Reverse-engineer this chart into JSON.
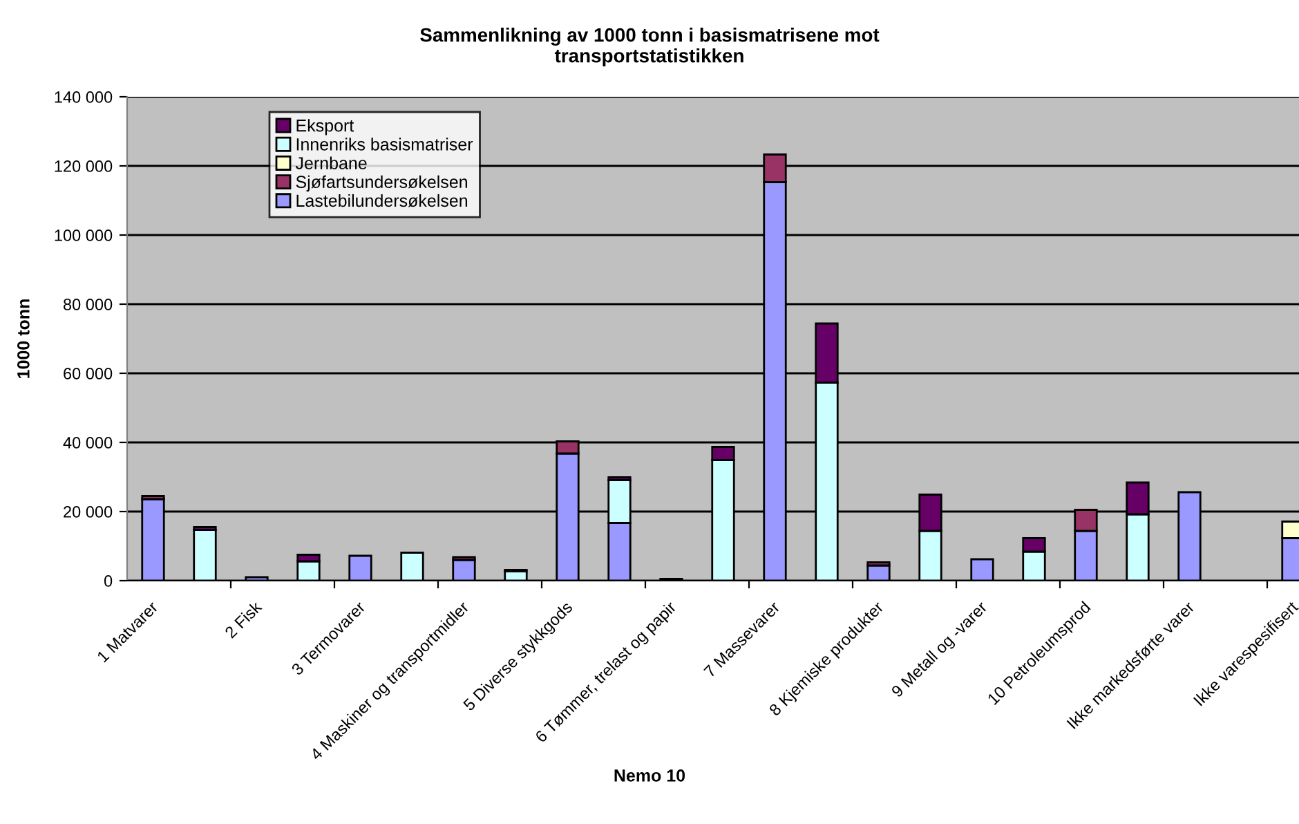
{
  "chart_data": {
    "type": "bar",
    "stacked": true,
    "title": "Sammenlikning av 1000 tonn i basismatrisene mot\ntransportstatistikken",
    "xlabel": "Nemo 10",
    "ylabel": "1000 tonn",
    "categories": [
      "1 Matvarer",
      null,
      "2 Fisk",
      null,
      "3 Termovarer",
      null,
      "4 Maskiner og transportmidler",
      null,
      "5 Diverse stykkgods",
      null,
      "6 Tømmer, trelast og papir",
      null,
      "7 Massevarer",
      null,
      "8 Kjemiske produkter",
      null,
      "9 Metall og -varer",
      null,
      "10 Petroleumsprod",
      null,
      "Ikke markedsførte varer",
      null,
      "Ikke varespesifisert"
    ],
    "series": [
      {
        "name": "Lastebilundersøkelsen",
        "color": "#9999ff",
        "values": [
          23600,
          null,
          1000,
          null,
          7200,
          null,
          6000,
          null,
          36800,
          16700,
          null,
          null,
          115300,
          null,
          4400,
          null,
          6200,
          null,
          14400,
          null,
          25600,
          null,
          12300
        ]
      },
      {
        "name": "Sjøfartsundersøkelsen",
        "color": "#993366",
        "values": [
          900,
          null,
          null,
          null,
          null,
          null,
          800,
          null,
          3500,
          null,
          null,
          null,
          8000,
          null,
          900,
          null,
          null,
          null,
          6100,
          null,
          null,
          null,
          null
        ]
      },
      {
        "name": "Jernbane",
        "color": "#ffffcc",
        "values": [
          null,
          null,
          null,
          null,
          null,
          null,
          null,
          null,
          null,
          null,
          null,
          null,
          null,
          null,
          null,
          null,
          null,
          null,
          null,
          null,
          null,
          null,
          4800
        ]
      },
      {
        "name": "Innenriks basismatriser",
        "color": "#ccffff",
        "values": [
          null,
          14700,
          null,
          5600,
          null,
          8100,
          null,
          2700,
          null,
          12400,
          null,
          34900,
          null,
          57300,
          null,
          14400,
          null,
          8400,
          null,
          19200,
          null,
          null,
          null
        ]
      },
      {
        "name": "Eksport",
        "color": "#660066",
        "values": [
          null,
          800,
          null,
          1900,
          null,
          null,
          null,
          400,
          null,
          800,
          500,
          3800,
          null,
          17100,
          null,
          10500,
          null,
          3900,
          null,
          9200,
          null,
          null,
          null
        ]
      }
    ],
    "ylim": [
      0,
      140000
    ],
    "yticks": [
      0,
      {
        "value": 20000,
        "label": "20 000"
      },
      {
        "value": 40000,
        "label": "40 000"
      },
      {
        "value": 60000,
        "label": "60 000"
      },
      {
        "value": 80000,
        "label": "80 000"
      },
      {
        "value": 100000,
        "label": "100 000"
      },
      {
        "value": 120000,
        "label": "120 000"
      },
      {
        "value": 140000,
        "label": "140 000"
      }
    ],
    "grid": "y",
    "legend": "top left"
  }
}
